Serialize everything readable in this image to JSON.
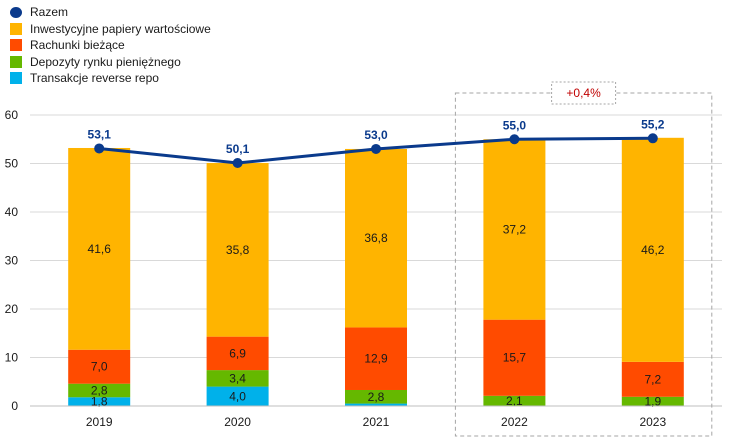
{
  "colors": {
    "total": "#0a3a8c",
    "securities": "#ffb400",
    "current_accounts": "#ff4b00",
    "money_market": "#65b800",
    "reverse_repo": "#00b1ea",
    "annotation": "#c00000",
    "grid": "#d9d9d9",
    "axis_text": "#1a1a1a",
    "dashed_box": "#a6a6a6"
  },
  "legend": [
    {
      "name": "Razem",
      "shape": "dot",
      "key": "total"
    },
    {
      "name": "Inwestycyjne papiery wartościowe",
      "shape": "square",
      "key": "securities"
    },
    {
      "name": "Rachunki bieżące",
      "shape": "square",
      "key": "current_accounts"
    },
    {
      "name": "Depozyty rynku pieniężnego",
      "shape": "square",
      "key": "money_market"
    },
    {
      "name": "Transakcje reverse repo",
      "shape": "square",
      "key": "reverse_repo"
    }
  ],
  "annotation": "+0,4%",
  "chart_data": {
    "type": "bar",
    "stacked": true,
    "categories": [
      "2019",
      "2020",
      "2021",
      "2022",
      "2023"
    ],
    "ylim": [
      0,
      60
    ],
    "yticks": [
      0,
      10,
      20,
      30,
      40,
      50,
      60
    ],
    "grid": true,
    "legend_position": "top-left",
    "series": [
      {
        "name": "Transakcje reverse repo",
        "key": "reverse_repo",
        "values": [
          1.8,
          4.0,
          0.5,
          0.0,
          0.0
        ],
        "labels": [
          "1,8",
          "4,0",
          "",
          "",
          ""
        ]
      },
      {
        "name": "Depozyty rynku pieniężnego",
        "key": "money_market",
        "values": [
          2.8,
          3.4,
          2.8,
          2.1,
          1.9
        ],
        "labels": [
          "2,8",
          "3,4",
          "2,8",
          "2,1",
          "1,9"
        ]
      },
      {
        "name": "Rachunki bieżące",
        "key": "current_accounts",
        "values": [
          7.0,
          6.9,
          12.9,
          15.7,
          7.2
        ],
        "labels": [
          "7,0",
          "6,9",
          "12,9",
          "15,7",
          "7,2"
        ]
      },
      {
        "name": "Inwestycyjne papiery wartościowe",
        "key": "securities",
        "values": [
          41.6,
          35.8,
          36.8,
          37.2,
          46.2
        ],
        "labels": [
          "41,6",
          "35,8",
          "36,8",
          "37,2",
          "46,2"
        ]
      }
    ],
    "line": {
      "name": "Razem",
      "key": "total",
      "values": [
        53.1,
        50.1,
        53.0,
        55.0,
        55.2
      ],
      "labels": [
        "53,1",
        "50,1",
        "53,0",
        "55,0",
        "55,2"
      ]
    }
  }
}
